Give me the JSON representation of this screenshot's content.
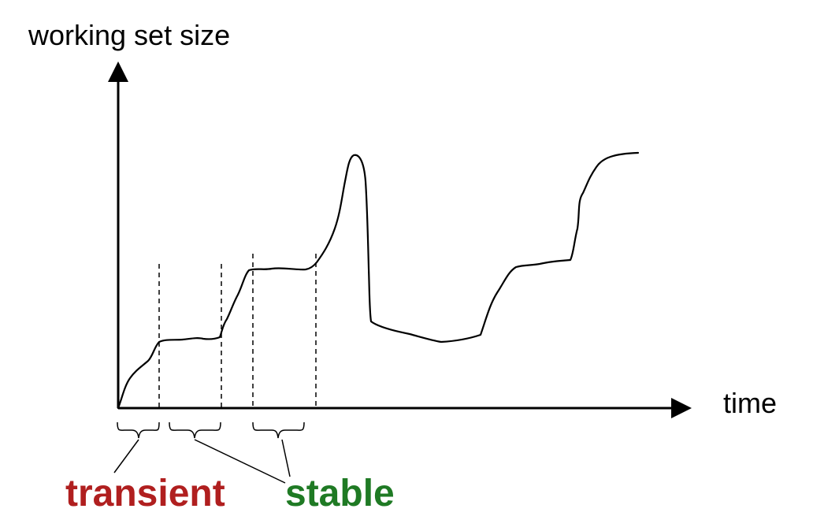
{
  "diagram": {
    "y_axis_label": "working set size",
    "x_axis_label": "time",
    "phases": {
      "transient": {
        "label": "transient",
        "color": "#b01f1f"
      },
      "stable": {
        "label": "stable",
        "color": "#1f7a24"
      }
    },
    "line_color": "#000000"
  }
}
